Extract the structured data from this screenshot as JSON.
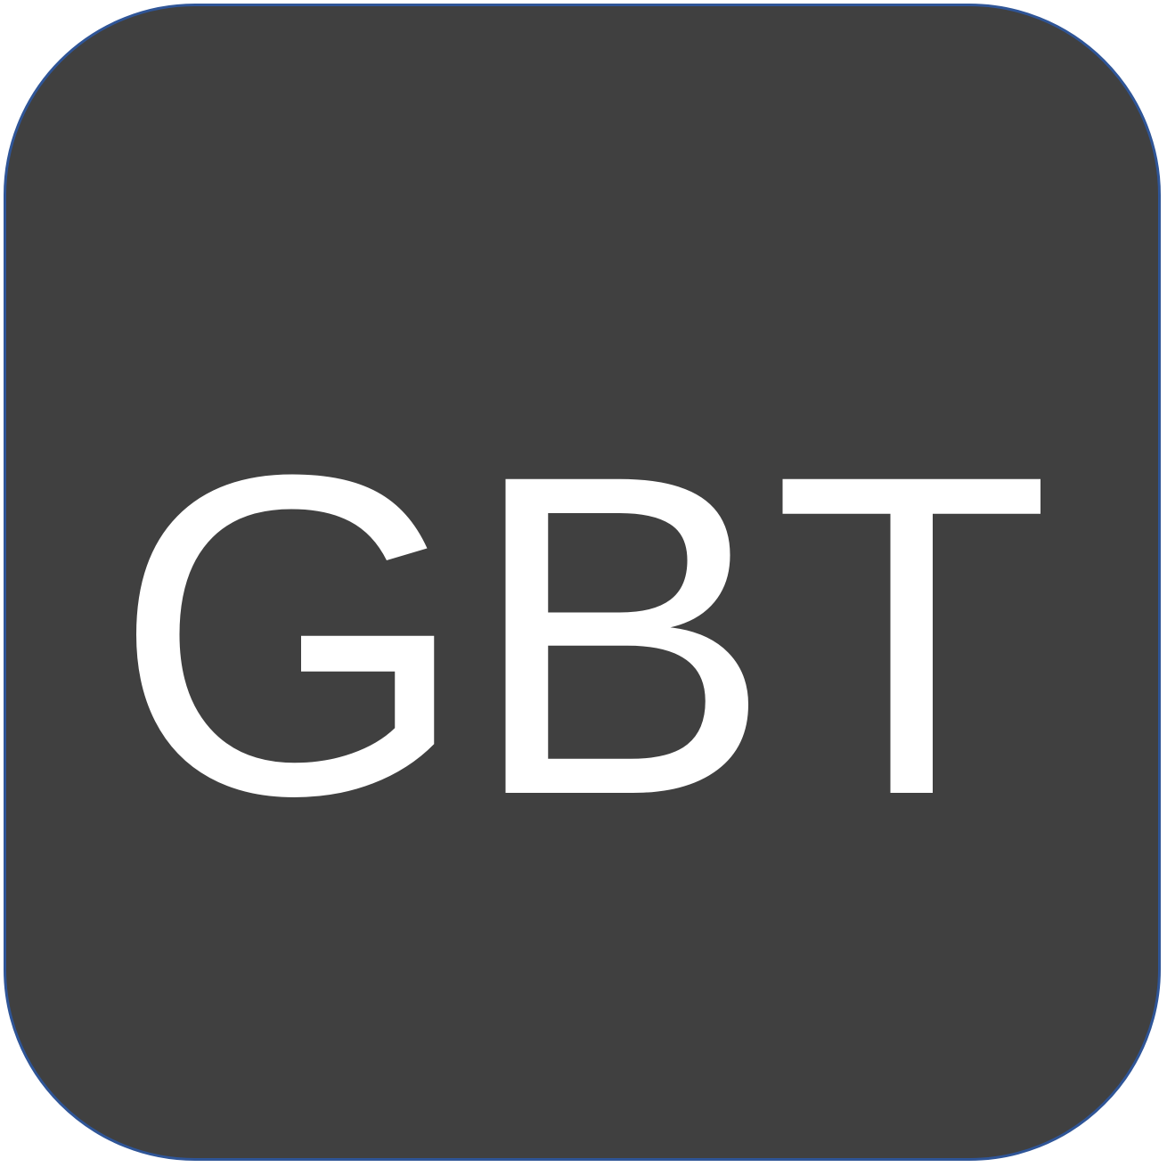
{
  "tile": {
    "label": "GBT",
    "background_color": "#404040",
    "border_color": "#2f5597",
    "text_color": "#ffffff"
  }
}
